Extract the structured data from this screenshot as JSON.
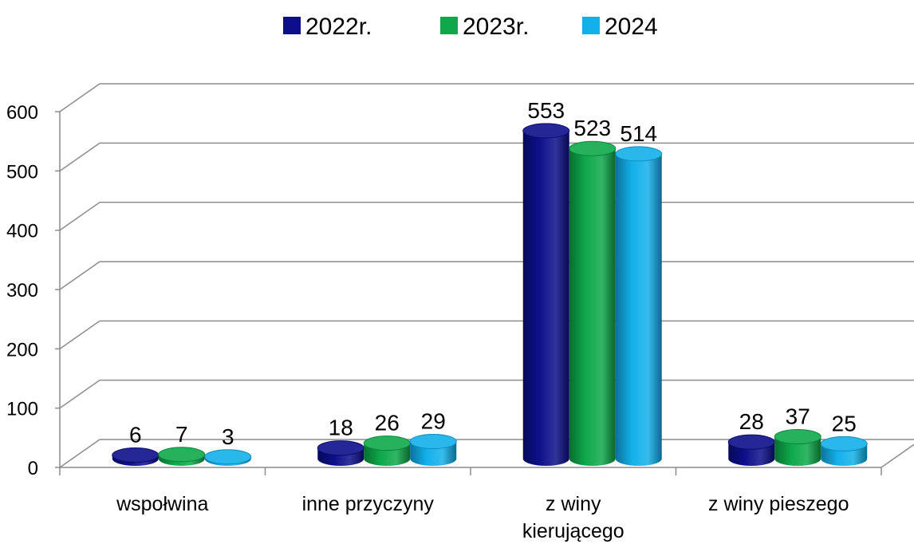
{
  "chart_data": {
    "type": "bar",
    "title": "",
    "xlabel": "",
    "ylabel": "",
    "categories": [
      "wspołwina",
      "inne przyczyny",
      "z winy kierującego",
      "z winy pieszego"
    ],
    "series": [
      {
        "name": "2022r.",
        "color": "#0d0f8a",
        "values": [
          6,
          18,
          553,
          28
        ]
      },
      {
        "name": "2023r.",
        "color": "#0ea84a",
        "values": [
          7,
          26,
          523,
          37
        ]
      },
      {
        "name": "2024",
        "color": "#12b0ea",
        "values": [
          3,
          29,
          514,
          25
        ]
      }
    ],
    "ylim": [
      0,
      600
    ],
    "yticks": [
      "0",
      "100",
      "200",
      "300",
      "400",
      "500",
      "600"
    ],
    "grid": true,
    "legend": "top-center",
    "style": "3d-cylinder"
  }
}
